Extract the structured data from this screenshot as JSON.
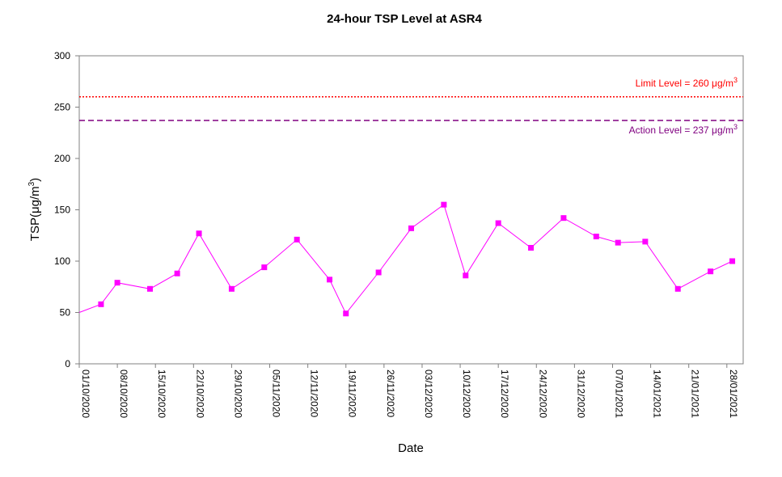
{
  "chart_data": {
    "type": "line",
    "title": "24-hour TSP Level at ASR4",
    "xlabel": "Date",
    "ylabel": "TSP(μg/m3)",
    "ylabel_text": "TSP(",
    "ylabel_unit": "μg/m",
    "ylabel_sup": "3",
    "ylabel_close": ")",
    "ylim": [
      0,
      300
    ],
    "yticks": [
      "0",
      "50",
      "100",
      "150",
      "200",
      "250",
      "300"
    ],
    "xlim": [
      "2020-10-01",
      "2021-01-31"
    ],
    "xticks": [
      "01/10/2020",
      "08/10/2020",
      "15/10/2020",
      "22/10/2020",
      "29/10/2020",
      "05/11/2020",
      "12/11/2020",
      "19/11/2020",
      "26/11/2020",
      "03/12/2020",
      "10/12/2020",
      "17/12/2020",
      "24/12/2020",
      "31/12/2020",
      "07/01/2021",
      "14/01/2021",
      "21/01/2021",
      "28/01/2021"
    ],
    "grid": false,
    "series": [
      {
        "color": "#ff00ff",
        "points": [
          {
            "x": "2020-10-05",
            "y": 58
          },
          {
            "x": "2020-10-08",
            "y": 79
          },
          {
            "x": "2020-10-14",
            "y": 73
          },
          {
            "x": "2020-10-19",
            "y": 88
          },
          {
            "x": "2020-10-23",
            "y": 127
          },
          {
            "x": "2020-10-29",
            "y": 73
          },
          {
            "x": "2020-11-04",
            "y": 94
          },
          {
            "x": "2020-11-10",
            "y": 121
          },
          {
            "x": "2020-11-16",
            "y": 82
          },
          {
            "x": "2020-11-19",
            "y": 49
          },
          {
            "x": "2020-11-25",
            "y": 89
          },
          {
            "x": "2020-12-01",
            "y": 132
          },
          {
            "x": "2020-12-07",
            "y": 155
          },
          {
            "x": "2020-12-11",
            "y": 86
          },
          {
            "x": "2020-12-17",
            "y": 137
          },
          {
            "x": "2020-12-23",
            "y": 113
          },
          {
            "x": "2020-12-29",
            "y": 142
          },
          {
            "x": "2021-01-04",
            "y": 124
          },
          {
            "x": "2021-01-08",
            "y": 118
          },
          {
            "x": "2021-01-13",
            "y": 119
          },
          {
            "x": "2021-01-19",
            "y": 73
          },
          {
            "x": "2021-01-25",
            "y": 90
          },
          {
            "x": "2021-01-29",
            "y": 100
          }
        ]
      }
    ],
    "reference_lines": [
      {
        "label": "Limit Level  = 260 μg/m",
        "sup": "3",
        "value": 260,
        "color": "#ff0000",
        "style": "dotted"
      },
      {
        "label": "Action Level  = 237 μg/m",
        "sup": "3",
        "value": 237,
        "color": "#800080",
        "style": "dashed"
      }
    ]
  }
}
